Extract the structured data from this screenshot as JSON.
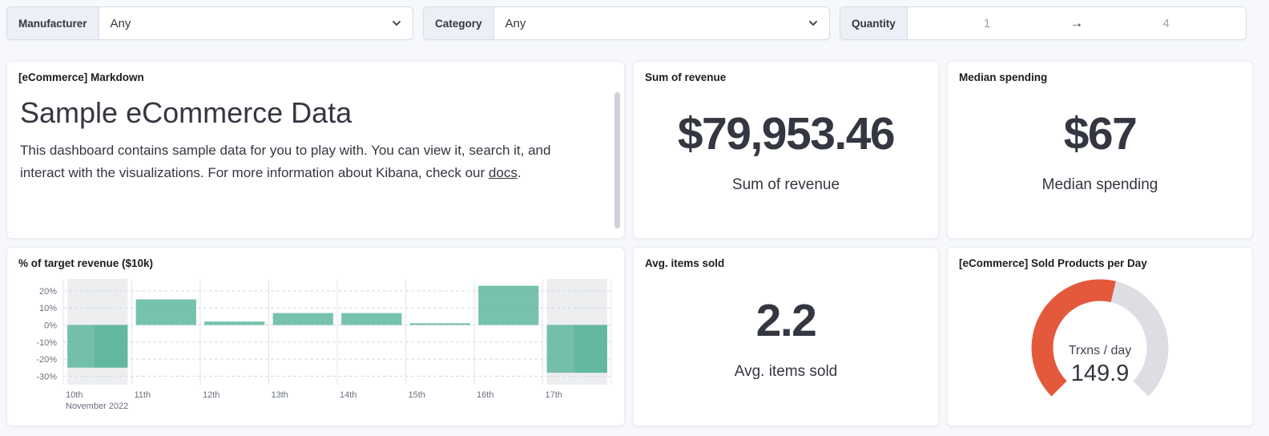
{
  "filter_bar": {
    "manufacturer": {
      "label": "Manufacturer",
      "value": "Any"
    },
    "category": {
      "label": "Category",
      "value": "Any"
    },
    "quantity": {
      "label": "Quantity",
      "from": "1",
      "to": "4"
    }
  },
  "panels": {
    "markdown": {
      "title": "[eCommerce] Markdown",
      "heading": "Sample eCommerce Data",
      "body_1": "This dashboard contains sample data for you to play with. You can view it, search it, and interact with the visualizations. For more information about Kibana, check our ",
      "link_text": "docs",
      "body_2": "."
    },
    "sum_revenue": {
      "title": "Sum of revenue",
      "value": "$79,953.46",
      "caption": "Sum of revenue"
    },
    "median_spending": {
      "title": "Median spending",
      "value": "$67",
      "caption": "Median spending"
    },
    "target_revenue": {
      "title": "% of target revenue ($10k)"
    },
    "avg_items_sold": {
      "title": "Avg. items sold",
      "value": "2.2",
      "caption": "Avg. items sold"
    },
    "sold_products": {
      "title": "[eCommerce] Sold Products per Day"
    }
  },
  "chart_data": [
    {
      "type": "bar",
      "title": "% of target revenue ($10k)",
      "categories": [
        "10th",
        "11th",
        "12th",
        "13th",
        "14th",
        "15th",
        "16th",
        "17th"
      ],
      "values": [
        -25,
        15,
        2,
        7,
        7,
        1,
        23,
        -28
      ],
      "x_axis_secondary_label": "November 2022",
      "yticks": [
        20,
        10,
        0,
        -10,
        -20,
        -30
      ],
      "ytick_labels": [
        "20%",
        "10%",
        "0%",
        "-10%",
        "-20%",
        "-30%"
      ],
      "ylim": [
        -35,
        27
      ],
      "bar_color": "#54B399",
      "partial_buckets": [
        "10th",
        "17th"
      ],
      "grid": true,
      "legend": "off"
    },
    {
      "type": "gauge",
      "title": "[eCommerce] Sold Products per Day",
      "label": "Trxns / day",
      "value": 149.9,
      "value_display": "149.9",
      "arc_color": "#E4593C",
      "track_color": "#DCDEE3"
    }
  ]
}
